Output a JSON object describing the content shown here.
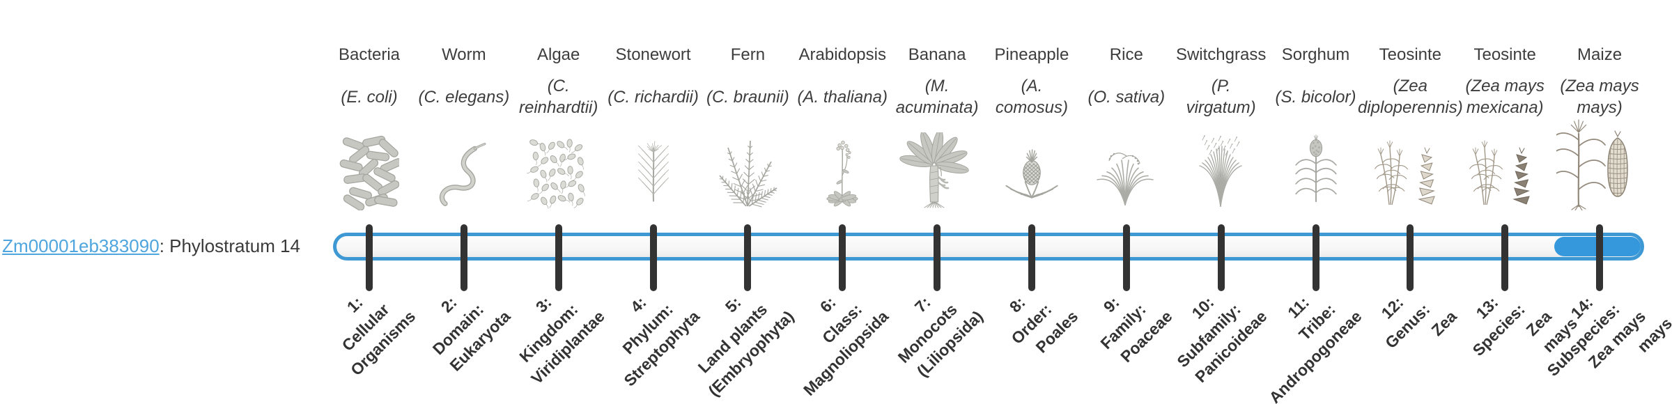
{
  "gene": {
    "id": "Zm00001eb383090",
    "annotation": ": Phylostratum 14",
    "link_color": "#4fa5de"
  },
  "timeline": {
    "bar_border_color": "#3d98d4",
    "highlight_color": "#3598dc",
    "highlight_stratum": 14,
    "tick_color": "#333333",
    "tick_count": 14
  },
  "organisms": [
    {
      "name": "Bacteria",
      "species_lines": [
        "(E. coli)"
      ],
      "illustration": "bacteria-illustration"
    },
    {
      "name": "Worm",
      "species_lines": [
        "(C. elegans)"
      ],
      "illustration": "worm-illustration"
    },
    {
      "name": "Algae",
      "species_lines": [
        "(C.",
        "reinhardtii)"
      ],
      "illustration": "algae-illustration"
    },
    {
      "name": "Stonewort",
      "species_lines": [
        "(C. richardii)"
      ],
      "illustration": "stonewort-illustration"
    },
    {
      "name": "Fern",
      "species_lines": [
        "(C. braunii)"
      ],
      "illustration": "fern-illustration"
    },
    {
      "name": "Arabidopsis",
      "species_lines": [
        "(A. thaliana)"
      ],
      "illustration": "arabidopsis-illustration"
    },
    {
      "name": "Banana",
      "species_lines": [
        "(M.",
        "acuminata)"
      ],
      "illustration": "banana-illustration"
    },
    {
      "name": "Pineapple",
      "species_lines": [
        "(A.",
        "comosus)"
      ],
      "illustration": "pineapple-illustration"
    },
    {
      "name": "Rice",
      "species_lines": [
        "(O. sativa)"
      ],
      "illustration": "rice-illustration"
    },
    {
      "name": "Switchgrass",
      "species_lines": [
        "(P.",
        "virgatum)"
      ],
      "illustration": "switchgrass-illustration"
    },
    {
      "name": "Sorghum",
      "species_lines": [
        "(S. bicolor)"
      ],
      "illustration": "sorghum-illustration"
    },
    {
      "name": "Teosinte",
      "species_lines": [
        "(Zea",
        "diploperennis)"
      ],
      "illustration": "teosinte-diploperennis-illustration"
    },
    {
      "name": "Teosinte",
      "species_lines": [
        "(Zea mays",
        "mexicana)"
      ],
      "illustration": "teosinte-mexicana-illustration"
    },
    {
      "name": "Maize",
      "species_lines": [
        "(Zea mays",
        "mays)"
      ],
      "illustration": "maize-illustration"
    }
  ],
  "phylostrata": [
    {
      "number": 1,
      "lines": [
        "1:",
        "Cellular",
        "Organisms"
      ]
    },
    {
      "number": 2,
      "lines": [
        "2:",
        "Domain:",
        "Eukaryota"
      ]
    },
    {
      "number": 3,
      "lines": [
        "3:",
        "Kingdom:",
        "Viridiplantae"
      ]
    },
    {
      "number": 4,
      "lines": [
        "4:",
        "Phylum:",
        "Streptophyta"
      ]
    },
    {
      "number": 5,
      "lines": [
        "5:",
        "Land plants",
        "(Embryophyta)"
      ]
    },
    {
      "number": 6,
      "lines": [
        "6:",
        "Class:",
        "Magnoliopsida"
      ]
    },
    {
      "number": 7,
      "lines": [
        "7:",
        "Monocots",
        "(Liliopsida)"
      ]
    },
    {
      "number": 8,
      "lines": [
        "8:",
        "Order:",
        "Poales"
      ]
    },
    {
      "number": 9,
      "lines": [
        "9:",
        "Family:",
        "Poaceae"
      ]
    },
    {
      "number": 10,
      "lines": [
        "10:",
        "Subfamily:",
        "Panicoideae"
      ]
    },
    {
      "number": 11,
      "lines": [
        "11:",
        "Tribe:",
        "Andropogoneae"
      ]
    },
    {
      "number": 12,
      "lines": [
        "12:",
        "Genus:",
        "Zea"
      ]
    },
    {
      "number": 13,
      "lines": [
        "13:",
        "Species:",
        "Zea",
        "mays"
      ]
    },
    {
      "number": 14,
      "lines": [
        "14:",
        "Subspecies:",
        "Zea mays",
        "mays"
      ]
    }
  ]
}
